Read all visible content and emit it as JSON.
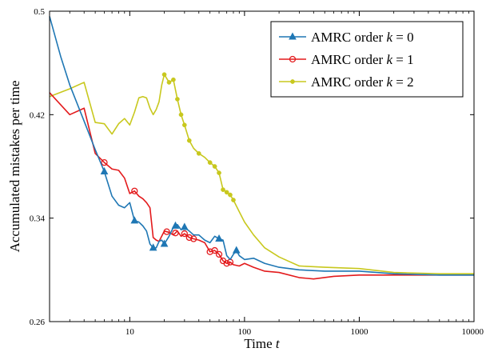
{
  "chart_data": {
    "type": "line",
    "xlabel": "Time t",
    "ylabel": "Accumulated mistakes per time",
    "xscale": "log",
    "xlim": [
      2,
      10000
    ],
    "ylim": [
      0.26,
      0.5
    ],
    "xticks": [
      10,
      100,
      1000,
      10000
    ],
    "yticks": [
      0.26,
      0.34,
      0.42,
      0.5
    ],
    "legend_position": "top-right",
    "series": [
      {
        "name": "AMRC order k = 0",
        "color": "#1f77b4",
        "marker": "triangle",
        "x": [
          2,
          2.5,
          3,
          4,
          5,
          6,
          7,
          8,
          9,
          10,
          11,
          12,
          13,
          14,
          15,
          16,
          17,
          18,
          19,
          20,
          22,
          24,
          26,
          28,
          30,
          33,
          36,
          40,
          45,
          50,
          55,
          60,
          65,
          70,
          75,
          80,
          85,
          90,
          100,
          120,
          150,
          200,
          300,
          500,
          1000,
          2000,
          5000,
          10000
        ],
        "y": [
          0.496,
          0.465,
          0.443,
          0.415,
          0.393,
          0.376,
          0.357,
          0.35,
          0.348,
          0.352,
          0.338,
          0.337,
          0.334,
          0.33,
          0.32,
          0.317,
          0.317,
          0.322,
          0.323,
          0.32,
          0.326,
          0.333,
          0.335,
          0.331,
          0.333,
          0.33,
          0.327,
          0.327,
          0.323,
          0.321,
          0.326,
          0.324,
          0.323,
          0.311,
          0.308,
          0.312,
          0.315,
          0.311,
          0.308,
          0.309,
          0.305,
          0.302,
          0.3,
          0.299,
          0.299,
          0.297,
          0.296,
          0.296
        ],
        "markers_at": [
          6,
          11,
          16,
          20,
          25,
          30,
          60,
          85
        ]
      },
      {
        "name": "AMRC order k = 1",
        "color": "#e31a1c",
        "marker": "circle",
        "x": [
          2,
          3,
          4,
          5,
          6,
          7,
          8,
          9,
          10,
          11,
          12,
          13,
          14,
          15,
          16,
          17,
          18,
          20,
          22,
          24,
          26,
          28,
          30,
          33,
          36,
          40,
          45,
          50,
          55,
          60,
          65,
          70,
          75,
          80,
          90,
          100,
          120,
          150,
          200,
          300,
          400,
          600,
          1000,
          2000,
          5000,
          10000
        ],
        "y": [
          0.437,
          0.42,
          0.425,
          0.39,
          0.383,
          0.378,
          0.377,
          0.371,
          0.359,
          0.361,
          0.357,
          0.355,
          0.352,
          0.348,
          0.325,
          0.323,
          0.322,
          0.33,
          0.329,
          0.327,
          0.33,
          0.326,
          0.328,
          0.325,
          0.324,
          0.323,
          0.321,
          0.314,
          0.315,
          0.312,
          0.307,
          0.305,
          0.306,
          0.304,
          0.303,
          0.305,
          0.302,
          0.299,
          0.298,
          0.294,
          0.293,
          0.295,
          0.296,
          0.296,
          0.296,
          0.296
        ],
        "markers_at": [
          6,
          11,
          21,
          25,
          30,
          33,
          36,
          50,
          55,
          60,
          65,
          70,
          75
        ]
      },
      {
        "name": "AMRC order k = 2",
        "color": "#c8c81e",
        "marker": "dot",
        "x": [
          2,
          3,
          4,
          5,
          6,
          7,
          8,
          9,
          10,
          11,
          12,
          13,
          14,
          15,
          16,
          17,
          18,
          19,
          20,
          21,
          22,
          24,
          26,
          28,
          30,
          33,
          36,
          40,
          45,
          50,
          55,
          60,
          65,
          70,
          75,
          80,
          90,
          100,
          120,
          150,
          200,
          300,
          500,
          1000,
          2000,
          5000,
          10000
        ],
        "y": [
          0.434,
          0.44,
          0.445,
          0.414,
          0.413,
          0.405,
          0.413,
          0.417,
          0.412,
          0.422,
          0.433,
          0.434,
          0.433,
          0.425,
          0.42,
          0.424,
          0.43,
          0.443,
          0.451,
          0.448,
          0.445,
          0.447,
          0.432,
          0.42,
          0.412,
          0.4,
          0.394,
          0.39,
          0.387,
          0.383,
          0.38,
          0.375,
          0.362,
          0.36,
          0.358,
          0.354,
          0.345,
          0.337,
          0.327,
          0.317,
          0.31,
          0.303,
          0.302,
          0.301,
          0.298,
          0.297,
          0.297
        ],
        "markers_at": [
          20,
          22,
          24,
          26,
          28,
          30,
          33,
          40,
          50,
          55,
          60,
          65,
          70,
          75,
          80
        ]
      }
    ],
    "legend": [
      {
        "name_prefix": "AMRC order ",
        "k_var": "k",
        "k_eq": " = 0"
      },
      {
        "name_prefix": "AMRC order ",
        "k_var": "k",
        "k_eq": " = 1"
      },
      {
        "name_prefix": "AMRC order ",
        "k_var": "k",
        "k_eq": " = 2"
      }
    ]
  },
  "axes": {
    "ytick_labels": [
      "0.26",
      "0.34",
      "0.42",
      "0.5"
    ],
    "xtick_labels": [
      "10",
      "100",
      "1000",
      "10000"
    ],
    "xlabel_text": "Time ",
    "xlabel_var": "t",
    "ylabel_text": "Accumulated mistakes per time"
  }
}
